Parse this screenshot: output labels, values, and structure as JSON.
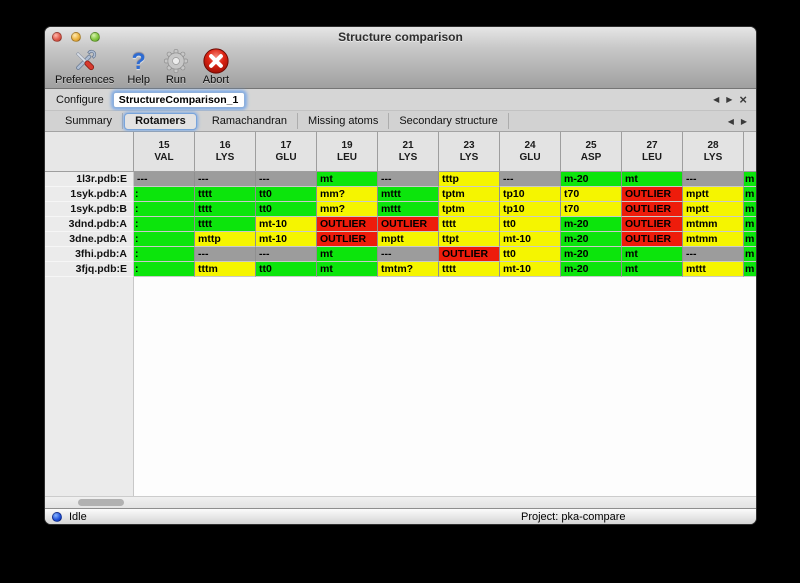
{
  "window": {
    "title": "Structure comparison"
  },
  "toolbar": {
    "items": [
      {
        "label": "Preferences",
        "icon": "tools-icon"
      },
      {
        "label": "Help",
        "icon": "question-mark-icon",
        "glyph": "?"
      },
      {
        "label": "Run",
        "icon": "gear-icon"
      },
      {
        "label": "Abort",
        "icon": "abort-x-icon"
      }
    ]
  },
  "configure": {
    "label": "Configure",
    "value": "StructureComparison_1"
  },
  "tabs": [
    "Summary",
    "Rotamers",
    "Ramachandran",
    "Missing atoms",
    "Secondary structure"
  ],
  "active_tab": "Rotamers",
  "nav": {
    "back": "◀",
    "forward": "▶",
    "close": "×"
  },
  "colors": {
    "green": "#0ce50c",
    "yellow": "#f5f500",
    "red": "#ee1c0b",
    "gray": "#9c9c9c"
  },
  "table": {
    "columns": [
      {
        "num": "15",
        "res": "VAL"
      },
      {
        "num": "16",
        "res": "LYS"
      },
      {
        "num": "17",
        "res": "GLU"
      },
      {
        "num": "19",
        "res": "LEU"
      },
      {
        "num": "21",
        "res": "LYS"
      },
      {
        "num": "23",
        "res": "LYS"
      },
      {
        "num": "24",
        "res": "GLU"
      },
      {
        "num": "25",
        "res": "ASP"
      },
      {
        "num": "27",
        "res": "LEU"
      },
      {
        "num": "28",
        "res": "LYS"
      }
    ],
    "rows": [
      {
        "label": "1l3r.pdb:E",
        "cells": [
          {
            "t": "---",
            "c": "gray"
          },
          {
            "t": "---",
            "c": "gray"
          },
          {
            "t": "---",
            "c": "gray"
          },
          {
            "t": "mt",
            "c": "green"
          },
          {
            "t": "---",
            "c": "gray"
          },
          {
            "t": "tttp",
            "c": "yellow"
          },
          {
            "t": "---",
            "c": "gray"
          },
          {
            "t": "m-20",
            "c": "green"
          },
          {
            "t": "mt",
            "c": "green"
          },
          {
            "t": "---",
            "c": "gray"
          }
        ],
        "partial": {
          "t": "m",
          "c": "green"
        }
      },
      {
        "label": "1syk.pdb:A",
        "cells": [
          {
            "t": ":",
            "c": "green",
            "clip": true
          },
          {
            "t": "tttt",
            "c": "green"
          },
          {
            "t": "tt0",
            "c": "green"
          },
          {
            "t": "mm?",
            "c": "yellow"
          },
          {
            "t": "mttt",
            "c": "green"
          },
          {
            "t": "tptm",
            "c": "yellow"
          },
          {
            "t": "tp10",
            "c": "yellow"
          },
          {
            "t": "t70",
            "c": "yellow"
          },
          {
            "t": "OUTLIER",
            "c": "red"
          },
          {
            "t": "mptt",
            "c": "yellow"
          }
        ],
        "partial": {
          "t": "m",
          "c": "green"
        }
      },
      {
        "label": "1syk.pdb:B",
        "cells": [
          {
            "t": ":",
            "c": "green",
            "clip": true
          },
          {
            "t": "tttt",
            "c": "green"
          },
          {
            "t": "tt0",
            "c": "green"
          },
          {
            "t": "mm?",
            "c": "yellow"
          },
          {
            "t": "mttt",
            "c": "green"
          },
          {
            "t": "tptm",
            "c": "yellow"
          },
          {
            "t": "tp10",
            "c": "yellow"
          },
          {
            "t": "t70",
            "c": "yellow"
          },
          {
            "t": "OUTLIER",
            "c": "red"
          },
          {
            "t": "mptt",
            "c": "yellow"
          }
        ],
        "partial": {
          "t": "m",
          "c": "green"
        }
      },
      {
        "label": "3dnd.pdb:A",
        "cells": [
          {
            "t": ":",
            "c": "green",
            "clip": true
          },
          {
            "t": "tttt",
            "c": "green"
          },
          {
            "t": "mt-10",
            "c": "yellow"
          },
          {
            "t": "OUTLIER",
            "c": "red"
          },
          {
            "t": "OUTLIER",
            "c": "red"
          },
          {
            "t": "tttt",
            "c": "yellow"
          },
          {
            "t": "tt0",
            "c": "yellow"
          },
          {
            "t": "m-20",
            "c": "green"
          },
          {
            "t": "OUTLIER",
            "c": "red"
          },
          {
            "t": "mtmm",
            "c": "yellow"
          }
        ],
        "partial": {
          "t": "m",
          "c": "green"
        }
      },
      {
        "label": "3dne.pdb:A",
        "cells": [
          {
            "t": ":",
            "c": "green",
            "clip": true
          },
          {
            "t": "mttp",
            "c": "yellow"
          },
          {
            "t": "mt-10",
            "c": "yellow"
          },
          {
            "t": "OUTLIER",
            "c": "red"
          },
          {
            "t": "mptt",
            "c": "yellow"
          },
          {
            "t": "ttpt",
            "c": "yellow"
          },
          {
            "t": "mt-10",
            "c": "yellow"
          },
          {
            "t": "m-20",
            "c": "green"
          },
          {
            "t": "OUTLIER",
            "c": "red"
          },
          {
            "t": "mtmm",
            "c": "yellow"
          }
        ],
        "partial": {
          "t": "m",
          "c": "green"
        }
      },
      {
        "label": "3fhi.pdb:A",
        "cells": [
          {
            "t": ":",
            "c": "green",
            "clip": true
          },
          {
            "t": "---",
            "c": "gray"
          },
          {
            "t": "---",
            "c": "gray"
          },
          {
            "t": "mt",
            "c": "green"
          },
          {
            "t": "---",
            "c": "gray"
          },
          {
            "t": "OUTLIER",
            "c": "red"
          },
          {
            "t": "tt0",
            "c": "yellow"
          },
          {
            "t": "m-20",
            "c": "green"
          },
          {
            "t": "mt",
            "c": "green"
          },
          {
            "t": "---",
            "c": "gray"
          }
        ],
        "partial": {
          "t": "m",
          "c": "green"
        }
      },
      {
        "label": "3fjq.pdb:E",
        "cells": [
          {
            "t": ":",
            "c": "green",
            "clip": true
          },
          {
            "t": "tttm",
            "c": "yellow"
          },
          {
            "t": "tt0",
            "c": "green"
          },
          {
            "t": "mt",
            "c": "green"
          },
          {
            "t": "tmtm?",
            "c": "yellow"
          },
          {
            "t": "tttt",
            "c": "yellow"
          },
          {
            "t": "mt-10",
            "c": "yellow"
          },
          {
            "t": "m-20",
            "c": "green"
          },
          {
            "t": "mt",
            "c": "green"
          },
          {
            "t": "mttt",
            "c": "yellow"
          }
        ],
        "partial": {
          "t": "m",
          "c": "green"
        }
      }
    ]
  },
  "scrollbar": {
    "orientation": "horizontal",
    "thumb_position": "left"
  },
  "statusbar": {
    "status": "Idle",
    "project": "Project: pka-compare"
  }
}
